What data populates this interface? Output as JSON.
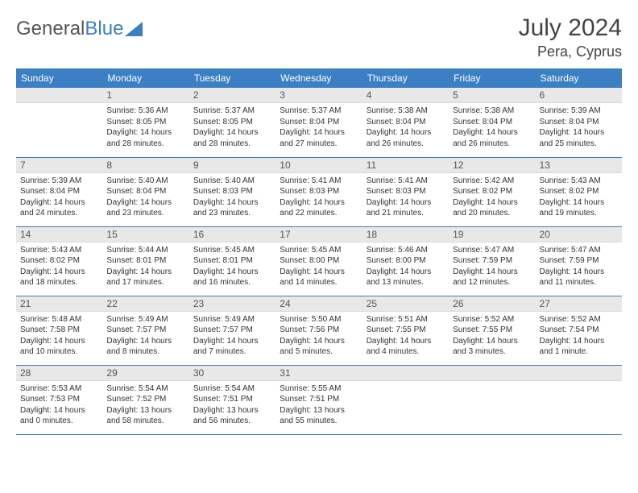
{
  "logo": {
    "word1": "General",
    "word2": "Blue"
  },
  "title": "July 2024",
  "location": "Pera, Cyprus",
  "day_headers": [
    "Sunday",
    "Monday",
    "Tuesday",
    "Wednesday",
    "Thursday",
    "Friday",
    "Saturday"
  ],
  "colors": {
    "header_bg": "#3b7fc4",
    "header_text": "#ffffff",
    "daynum_bg": "#e8e8e8",
    "row_border": "#3b7fc4",
    "body_text": "#333333",
    "title_text": "#444444"
  },
  "weeks": [
    [
      null,
      {
        "n": "1",
        "sr": "Sunrise: 5:36 AM",
        "ss": "Sunset: 8:05 PM",
        "dl": "Daylight: 14 hours and 28 minutes."
      },
      {
        "n": "2",
        "sr": "Sunrise: 5:37 AM",
        "ss": "Sunset: 8:05 PM",
        "dl": "Daylight: 14 hours and 28 minutes."
      },
      {
        "n": "3",
        "sr": "Sunrise: 5:37 AM",
        "ss": "Sunset: 8:04 PM",
        "dl": "Daylight: 14 hours and 27 minutes."
      },
      {
        "n": "4",
        "sr": "Sunrise: 5:38 AM",
        "ss": "Sunset: 8:04 PM",
        "dl": "Daylight: 14 hours and 26 minutes."
      },
      {
        "n": "5",
        "sr": "Sunrise: 5:38 AM",
        "ss": "Sunset: 8:04 PM",
        "dl": "Daylight: 14 hours and 26 minutes."
      },
      {
        "n": "6",
        "sr": "Sunrise: 5:39 AM",
        "ss": "Sunset: 8:04 PM",
        "dl": "Daylight: 14 hours and 25 minutes."
      }
    ],
    [
      {
        "n": "7",
        "sr": "Sunrise: 5:39 AM",
        "ss": "Sunset: 8:04 PM",
        "dl": "Daylight: 14 hours and 24 minutes."
      },
      {
        "n": "8",
        "sr": "Sunrise: 5:40 AM",
        "ss": "Sunset: 8:04 PM",
        "dl": "Daylight: 14 hours and 23 minutes."
      },
      {
        "n": "9",
        "sr": "Sunrise: 5:40 AM",
        "ss": "Sunset: 8:03 PM",
        "dl": "Daylight: 14 hours and 23 minutes."
      },
      {
        "n": "10",
        "sr": "Sunrise: 5:41 AM",
        "ss": "Sunset: 8:03 PM",
        "dl": "Daylight: 14 hours and 22 minutes."
      },
      {
        "n": "11",
        "sr": "Sunrise: 5:41 AM",
        "ss": "Sunset: 8:03 PM",
        "dl": "Daylight: 14 hours and 21 minutes."
      },
      {
        "n": "12",
        "sr": "Sunrise: 5:42 AM",
        "ss": "Sunset: 8:02 PM",
        "dl": "Daylight: 14 hours and 20 minutes."
      },
      {
        "n": "13",
        "sr": "Sunrise: 5:43 AM",
        "ss": "Sunset: 8:02 PM",
        "dl": "Daylight: 14 hours and 19 minutes."
      }
    ],
    [
      {
        "n": "14",
        "sr": "Sunrise: 5:43 AM",
        "ss": "Sunset: 8:02 PM",
        "dl": "Daylight: 14 hours and 18 minutes."
      },
      {
        "n": "15",
        "sr": "Sunrise: 5:44 AM",
        "ss": "Sunset: 8:01 PM",
        "dl": "Daylight: 14 hours and 17 minutes."
      },
      {
        "n": "16",
        "sr": "Sunrise: 5:45 AM",
        "ss": "Sunset: 8:01 PM",
        "dl": "Daylight: 14 hours and 16 minutes."
      },
      {
        "n": "17",
        "sr": "Sunrise: 5:45 AM",
        "ss": "Sunset: 8:00 PM",
        "dl": "Daylight: 14 hours and 14 minutes."
      },
      {
        "n": "18",
        "sr": "Sunrise: 5:46 AM",
        "ss": "Sunset: 8:00 PM",
        "dl": "Daylight: 14 hours and 13 minutes."
      },
      {
        "n": "19",
        "sr": "Sunrise: 5:47 AM",
        "ss": "Sunset: 7:59 PM",
        "dl": "Daylight: 14 hours and 12 minutes."
      },
      {
        "n": "20",
        "sr": "Sunrise: 5:47 AM",
        "ss": "Sunset: 7:59 PM",
        "dl": "Daylight: 14 hours and 11 minutes."
      }
    ],
    [
      {
        "n": "21",
        "sr": "Sunrise: 5:48 AM",
        "ss": "Sunset: 7:58 PM",
        "dl": "Daylight: 14 hours and 10 minutes."
      },
      {
        "n": "22",
        "sr": "Sunrise: 5:49 AM",
        "ss": "Sunset: 7:57 PM",
        "dl": "Daylight: 14 hours and 8 minutes."
      },
      {
        "n": "23",
        "sr": "Sunrise: 5:49 AM",
        "ss": "Sunset: 7:57 PM",
        "dl": "Daylight: 14 hours and 7 minutes."
      },
      {
        "n": "24",
        "sr": "Sunrise: 5:50 AM",
        "ss": "Sunset: 7:56 PM",
        "dl": "Daylight: 14 hours and 5 minutes."
      },
      {
        "n": "25",
        "sr": "Sunrise: 5:51 AM",
        "ss": "Sunset: 7:55 PM",
        "dl": "Daylight: 14 hours and 4 minutes."
      },
      {
        "n": "26",
        "sr": "Sunrise: 5:52 AM",
        "ss": "Sunset: 7:55 PM",
        "dl": "Daylight: 14 hours and 3 minutes."
      },
      {
        "n": "27",
        "sr": "Sunrise: 5:52 AM",
        "ss": "Sunset: 7:54 PM",
        "dl": "Daylight: 14 hours and 1 minute."
      }
    ],
    [
      {
        "n": "28",
        "sr": "Sunrise: 5:53 AM",
        "ss": "Sunset: 7:53 PM",
        "dl": "Daylight: 14 hours and 0 minutes."
      },
      {
        "n": "29",
        "sr": "Sunrise: 5:54 AM",
        "ss": "Sunset: 7:52 PM",
        "dl": "Daylight: 13 hours and 58 minutes."
      },
      {
        "n": "30",
        "sr": "Sunrise: 5:54 AM",
        "ss": "Sunset: 7:51 PM",
        "dl": "Daylight: 13 hours and 56 minutes."
      },
      {
        "n": "31",
        "sr": "Sunrise: 5:55 AM",
        "ss": "Sunset: 7:51 PM",
        "dl": "Daylight: 13 hours and 55 minutes."
      },
      null,
      null,
      null
    ]
  ]
}
